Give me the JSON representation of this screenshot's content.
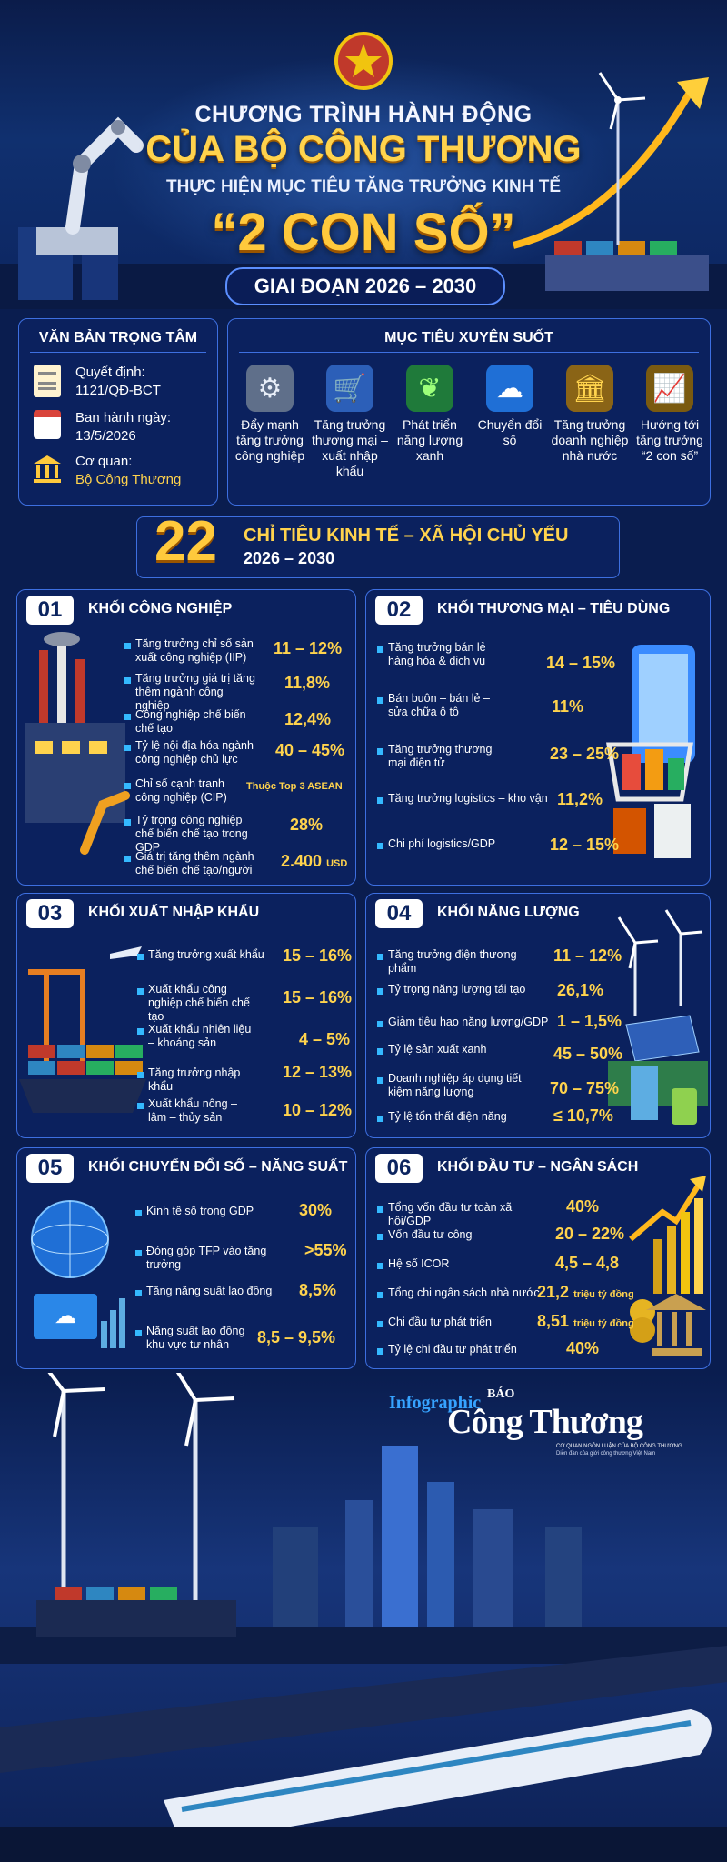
{
  "header": {
    "line1": "CHƯƠNG TRÌNH HÀNH ĐỘNG",
    "line2": "CỦA BỘ CÔNG THƯƠNG",
    "line3": "THỰC HIỆN MỤC TIÊU TĂNG TRƯỞNG KINH TẾ",
    "line4": "“2 CON SỐ”",
    "period": "GIAI ĐOẠN 2026 – 2030"
  },
  "document": {
    "title": "VĂN BẢN TRỌNG TÂM",
    "decision_label": "Quyết định:",
    "decision_value": "1121/QĐ-BCT",
    "date_label": "Ban hành ngày:",
    "date_value": "13/5/2026",
    "agency_label": "Cơ quan:",
    "agency_value": "Bộ Công Thương"
  },
  "goals": {
    "title": "MỤC TIÊU XUYÊN SUỐT",
    "items": [
      {
        "label": "Đẩy mạnh tăng trưởng công nghiệp",
        "icon": "gear-icon"
      },
      {
        "label": "Tăng trưởng thương mại – xuất nhập khẩu",
        "icon": "cart-icon"
      },
      {
        "label": "Phát triển năng lượng xanh",
        "icon": "leaf-icon"
      },
      {
        "label": "Chuyển đổi số",
        "icon": "cloud-icon"
      },
      {
        "label": "Tăng trưởng doanh nghiệp nhà nước",
        "icon": "bank-icon"
      },
      {
        "label": "Hướng tới tăng trưởng “2 con số”",
        "icon": "growth-chart-icon"
      }
    ]
  },
  "indicators": {
    "count": "22",
    "title": "CHỈ TIÊU KINH TẾ – XÃ HỘI CHỦ YẾU",
    "period": "2026 – 2030"
  },
  "sections": [
    {
      "num": "01",
      "title": "KHỐI CÔNG NGHIỆP",
      "rows": [
        {
          "label": "Tăng trưởng chỉ số sản xuất công nghiệp (IIP)",
          "value": "11 – 12%"
        },
        {
          "label": "Tăng trưởng giá trị tăng thêm ngành công nghiệp",
          "value": "11,8%"
        },
        {
          "label": "Công nghiệp chế biến chế tạo",
          "value": "12,4%"
        },
        {
          "label": "Tỷ lệ nội địa hóa ngành công nghiệp chủ lực",
          "value": "40 – 45%"
        },
        {
          "label": "Chỉ số cạnh tranh công nghiệp (CIP)",
          "value": "Thuộc Top 3 ASEAN"
        },
        {
          "label": "Tỷ trọng công nghiệp chế biến chế tạo trong GDP",
          "value": "28%"
        },
        {
          "label": "Giá trị tăng thêm ngành chế biến chế tạo/người",
          "value": "2.400",
          "unit": "USD"
        }
      ]
    },
    {
      "num": "02",
      "title": "KHỐI THƯƠNG MẠI – TIÊU DÙNG",
      "rows": [
        {
          "label": "Tăng trưởng bán lẻ hàng hóa & dịch vụ",
          "value": "14 – 15%"
        },
        {
          "label": "Bán buôn – bán lẻ – sửa chữa ô tô",
          "value": "11%"
        },
        {
          "label": "Tăng trưởng thương mại điện tử",
          "value": "23 – 25%"
        },
        {
          "label": "Tăng trưởng logistics – kho vận",
          "value": "11,2%"
        },
        {
          "label": "Chi phí logistics/GDP",
          "value": "12 – 15%"
        }
      ]
    },
    {
      "num": "03",
      "title": "KHỐI XUẤT NHẬP KHẨU",
      "rows": [
        {
          "label": "Tăng trưởng xuất khẩu",
          "value": "15 – 16%"
        },
        {
          "label": "Xuất khẩu công nghiệp chế biến chế tạo",
          "value": "15 – 16%"
        },
        {
          "label": "Xuất khẩu nhiên liệu – khoáng sản",
          "value": "4 – 5%"
        },
        {
          "label": "Tăng trưởng nhập khẩu",
          "value": "12 – 13%"
        },
        {
          "label": "Xuất khẩu nông – lâm – thủy sản",
          "value": "10 – 12%"
        }
      ]
    },
    {
      "num": "04",
      "title": "KHỐI NĂNG LƯỢNG",
      "rows": [
        {
          "label": "Tăng trưởng điện thương phẩm",
          "value": "11 – 12%"
        },
        {
          "label": "Tỷ trọng năng lượng tái tạo",
          "value": "26,1%"
        },
        {
          "label": "Giảm tiêu hao năng lượng/GDP",
          "value": "1 – 1,5%"
        },
        {
          "label": "Tỷ lệ sản xuất xanh",
          "value": "45 – 50%"
        },
        {
          "label": "Doanh nghiệp áp dụng tiết kiệm năng lượng",
          "value": "70 – 75%"
        },
        {
          "label": "Tỷ lệ tổn thất điện năng",
          "value": "≤ 10,7%"
        }
      ]
    },
    {
      "num": "05",
      "title": "KHỐI CHUYỂN ĐỔI SỐ – NĂNG SUẤT",
      "rows": [
        {
          "label": "Kinh tế số trong GDP",
          "value": "30%"
        },
        {
          "label": "Đóng góp TFP vào tăng trưởng",
          "value": ">55%"
        },
        {
          "label": "Tăng năng suất lao động",
          "value": "8,5%"
        },
        {
          "label": "Năng suất lao động khu vực tư nhân",
          "value": "8,5 – 9,5%"
        }
      ]
    },
    {
      "num": "06",
      "title": "KHỐI ĐẦU TƯ – NGÂN SÁCH",
      "rows": [
        {
          "label": "Tổng vốn đầu tư toàn xã hội/GDP",
          "value": "40%"
        },
        {
          "label": "Vốn đầu tư công",
          "value": "20 – 22%"
        },
        {
          "label": "Hệ số ICOR",
          "value": "4,5 – 4,8"
        },
        {
          "label": "Tổng chi ngân sách nhà nước",
          "value": "21,2",
          "unit": "triệu tỷ đồng"
        },
        {
          "label": "Chi đầu tư phát triển",
          "value": "8,51",
          "unit": "triệu tỷ đồng"
        },
        {
          "label": "Tỷ lệ chi đầu tư phát triển",
          "value": "40%"
        }
      ]
    }
  ],
  "footer": {
    "infographic": "Infographic",
    "brand_small": "BÁO",
    "brand": "Công Thương",
    "tagline1": "CƠ QUAN NGÔN LUẬN CỦA BỘ CÔNG THƯƠNG",
    "tagline2": "Diễn đàn của giới công thương Việt Nam"
  },
  "colors": {
    "gold": "#ffd34d",
    "navy": "#0a1d4f",
    "panel_border": "#3d6fe0",
    "bullet": "#34b9ff"
  }
}
